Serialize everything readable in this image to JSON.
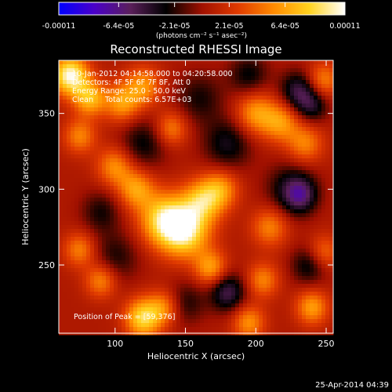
{
  "colorbar": {
    "tick_labels": [
      "-0.00011",
      "-6.4e-05",
      "-2.1e-05",
      "2.1e-05",
      "6.4e-05",
      "0.00011"
    ],
    "tick_values": [
      -0.00011,
      -6.4e-05,
      -2.1e-05,
      2.1e-05,
      6.4e-05,
      0.00011
    ],
    "range": [
      -0.00011,
      0.00011
    ],
    "units_label": "(photons cm⁻² s⁻¹ asec⁻²)",
    "colormap": [
      "#0000ff",
      "#4b00c8",
      "#5a1f5a",
      "#000000",
      "#a01000",
      "#e03a00",
      "#ff8a00",
      "#ffd21e",
      "#ffffff"
    ]
  },
  "chart_data": {
    "type": "heatmap",
    "title": "Reconstructed RHESSI Image",
    "xlabel": "Heliocentric X (arcsec)",
    "ylabel": "Heliocentric Y (arcsec)",
    "xlim": [
      60,
      255
    ],
    "ylim": [
      205,
      385
    ],
    "xticks": [
      100,
      150,
      200,
      250
    ],
    "yticks": [
      250,
      300,
      350
    ],
    "annotations": {
      "time_range": "10-Jan-2012 04:14:58.000 to 04:20:58.000",
      "detectors": "Detectors: 4F 5F 6F 7F 8F, Att 0",
      "energy": "Energy Range: 25.0 - 50.0 keV",
      "clean": "Clean     Total counts: 6.57E+03",
      "peak": "Position of Peak = [59,376]"
    },
    "peak": [
      59,
      376
    ],
    "blobs": [
      {
        "x": 68,
        "y": 375,
        "amp": 1.0,
        "s": 9
      },
      {
        "x": 82,
        "y": 360,
        "amp": 0.65,
        "s": 8
      },
      {
        "x": 105,
        "y": 357,
        "amp": 0.55,
        "s": 9
      },
      {
        "x": 120,
        "y": 368,
        "amp": 0.5,
        "s": 9
      },
      {
        "x": 140,
        "y": 340,
        "amp": 0.45,
        "s": 8
      },
      {
        "x": 75,
        "y": 335,
        "amp": 0.45,
        "s": 8
      },
      {
        "x": 200,
        "y": 350,
        "amp": 0.55,
        "s": 10
      },
      {
        "x": 218,
        "y": 344,
        "amp": 0.5,
        "s": 9
      },
      {
        "x": 235,
        "y": 330,
        "amp": 0.45,
        "s": 9
      },
      {
        "x": 248,
        "y": 372,
        "amp": 0.45,
        "s": 8
      },
      {
        "x": 100,
        "y": 315,
        "amp": 0.5,
        "s": 9
      },
      {
        "x": 115,
        "y": 300,
        "amp": 0.55,
        "s": 9
      },
      {
        "x": 135,
        "y": 280,
        "amp": 0.8,
        "s": 12
      },
      {
        "x": 150,
        "y": 272,
        "amp": 0.85,
        "s": 12
      },
      {
        "x": 162,
        "y": 292,
        "amp": 0.65,
        "s": 10
      },
      {
        "x": 175,
        "y": 300,
        "amp": 0.5,
        "s": 9
      },
      {
        "x": 210,
        "y": 275,
        "amp": 0.45,
        "s": 9
      },
      {
        "x": 75,
        "y": 260,
        "amp": 0.45,
        "s": 8
      },
      {
        "x": 90,
        "y": 240,
        "amp": 0.5,
        "s": 8
      },
      {
        "x": 120,
        "y": 215,
        "amp": 0.8,
        "s": 9
      },
      {
        "x": 135,
        "y": 222,
        "amp": 0.45,
        "s": 8
      },
      {
        "x": 168,
        "y": 248,
        "amp": 0.55,
        "s": 8
      },
      {
        "x": 205,
        "y": 240,
        "amp": 0.45,
        "s": 8
      },
      {
        "x": 195,
        "y": 212,
        "amp": 0.5,
        "s": 8
      },
      {
        "x": 240,
        "y": 222,
        "amp": 0.55,
        "s": 8
      },
      {
        "x": 248,
        "y": 258,
        "amp": 0.4,
        "s": 8
      },
      {
        "x": 120,
        "y": 330,
        "amp": -0.35,
        "s": 12
      },
      {
        "x": 180,
        "y": 330,
        "amp": -0.4,
        "s": 12
      },
      {
        "x": 195,
        "y": 375,
        "amp": -0.35,
        "s": 10
      },
      {
        "x": 230,
        "y": 365,
        "amp": -0.5,
        "s": 9
      },
      {
        "x": 240,
        "y": 355,
        "amp": -0.4,
        "s": 8
      },
      {
        "x": 225,
        "y": 300,
        "amp": -0.4,
        "s": 12
      },
      {
        "x": 100,
        "y": 255,
        "amp": -0.3,
        "s": 12
      },
      {
        "x": 180,
        "y": 232,
        "amp": -0.55,
        "s": 9
      },
      {
        "x": 150,
        "y": 225,
        "amp": -0.3,
        "s": 10
      },
      {
        "x": 238,
        "y": 250,
        "amp": -0.4,
        "s": 9
      },
      {
        "x": 232,
        "y": 296,
        "amp": -0.45,
        "s": 8
      },
      {
        "x": 90,
        "y": 285,
        "amp": -0.3,
        "s": 10
      },
      {
        "x": 160,
        "y": 360,
        "amp": -0.3,
        "s": 12
      }
    ]
  },
  "footer": {
    "timestamp": "25-Apr-2014 04:39"
  }
}
